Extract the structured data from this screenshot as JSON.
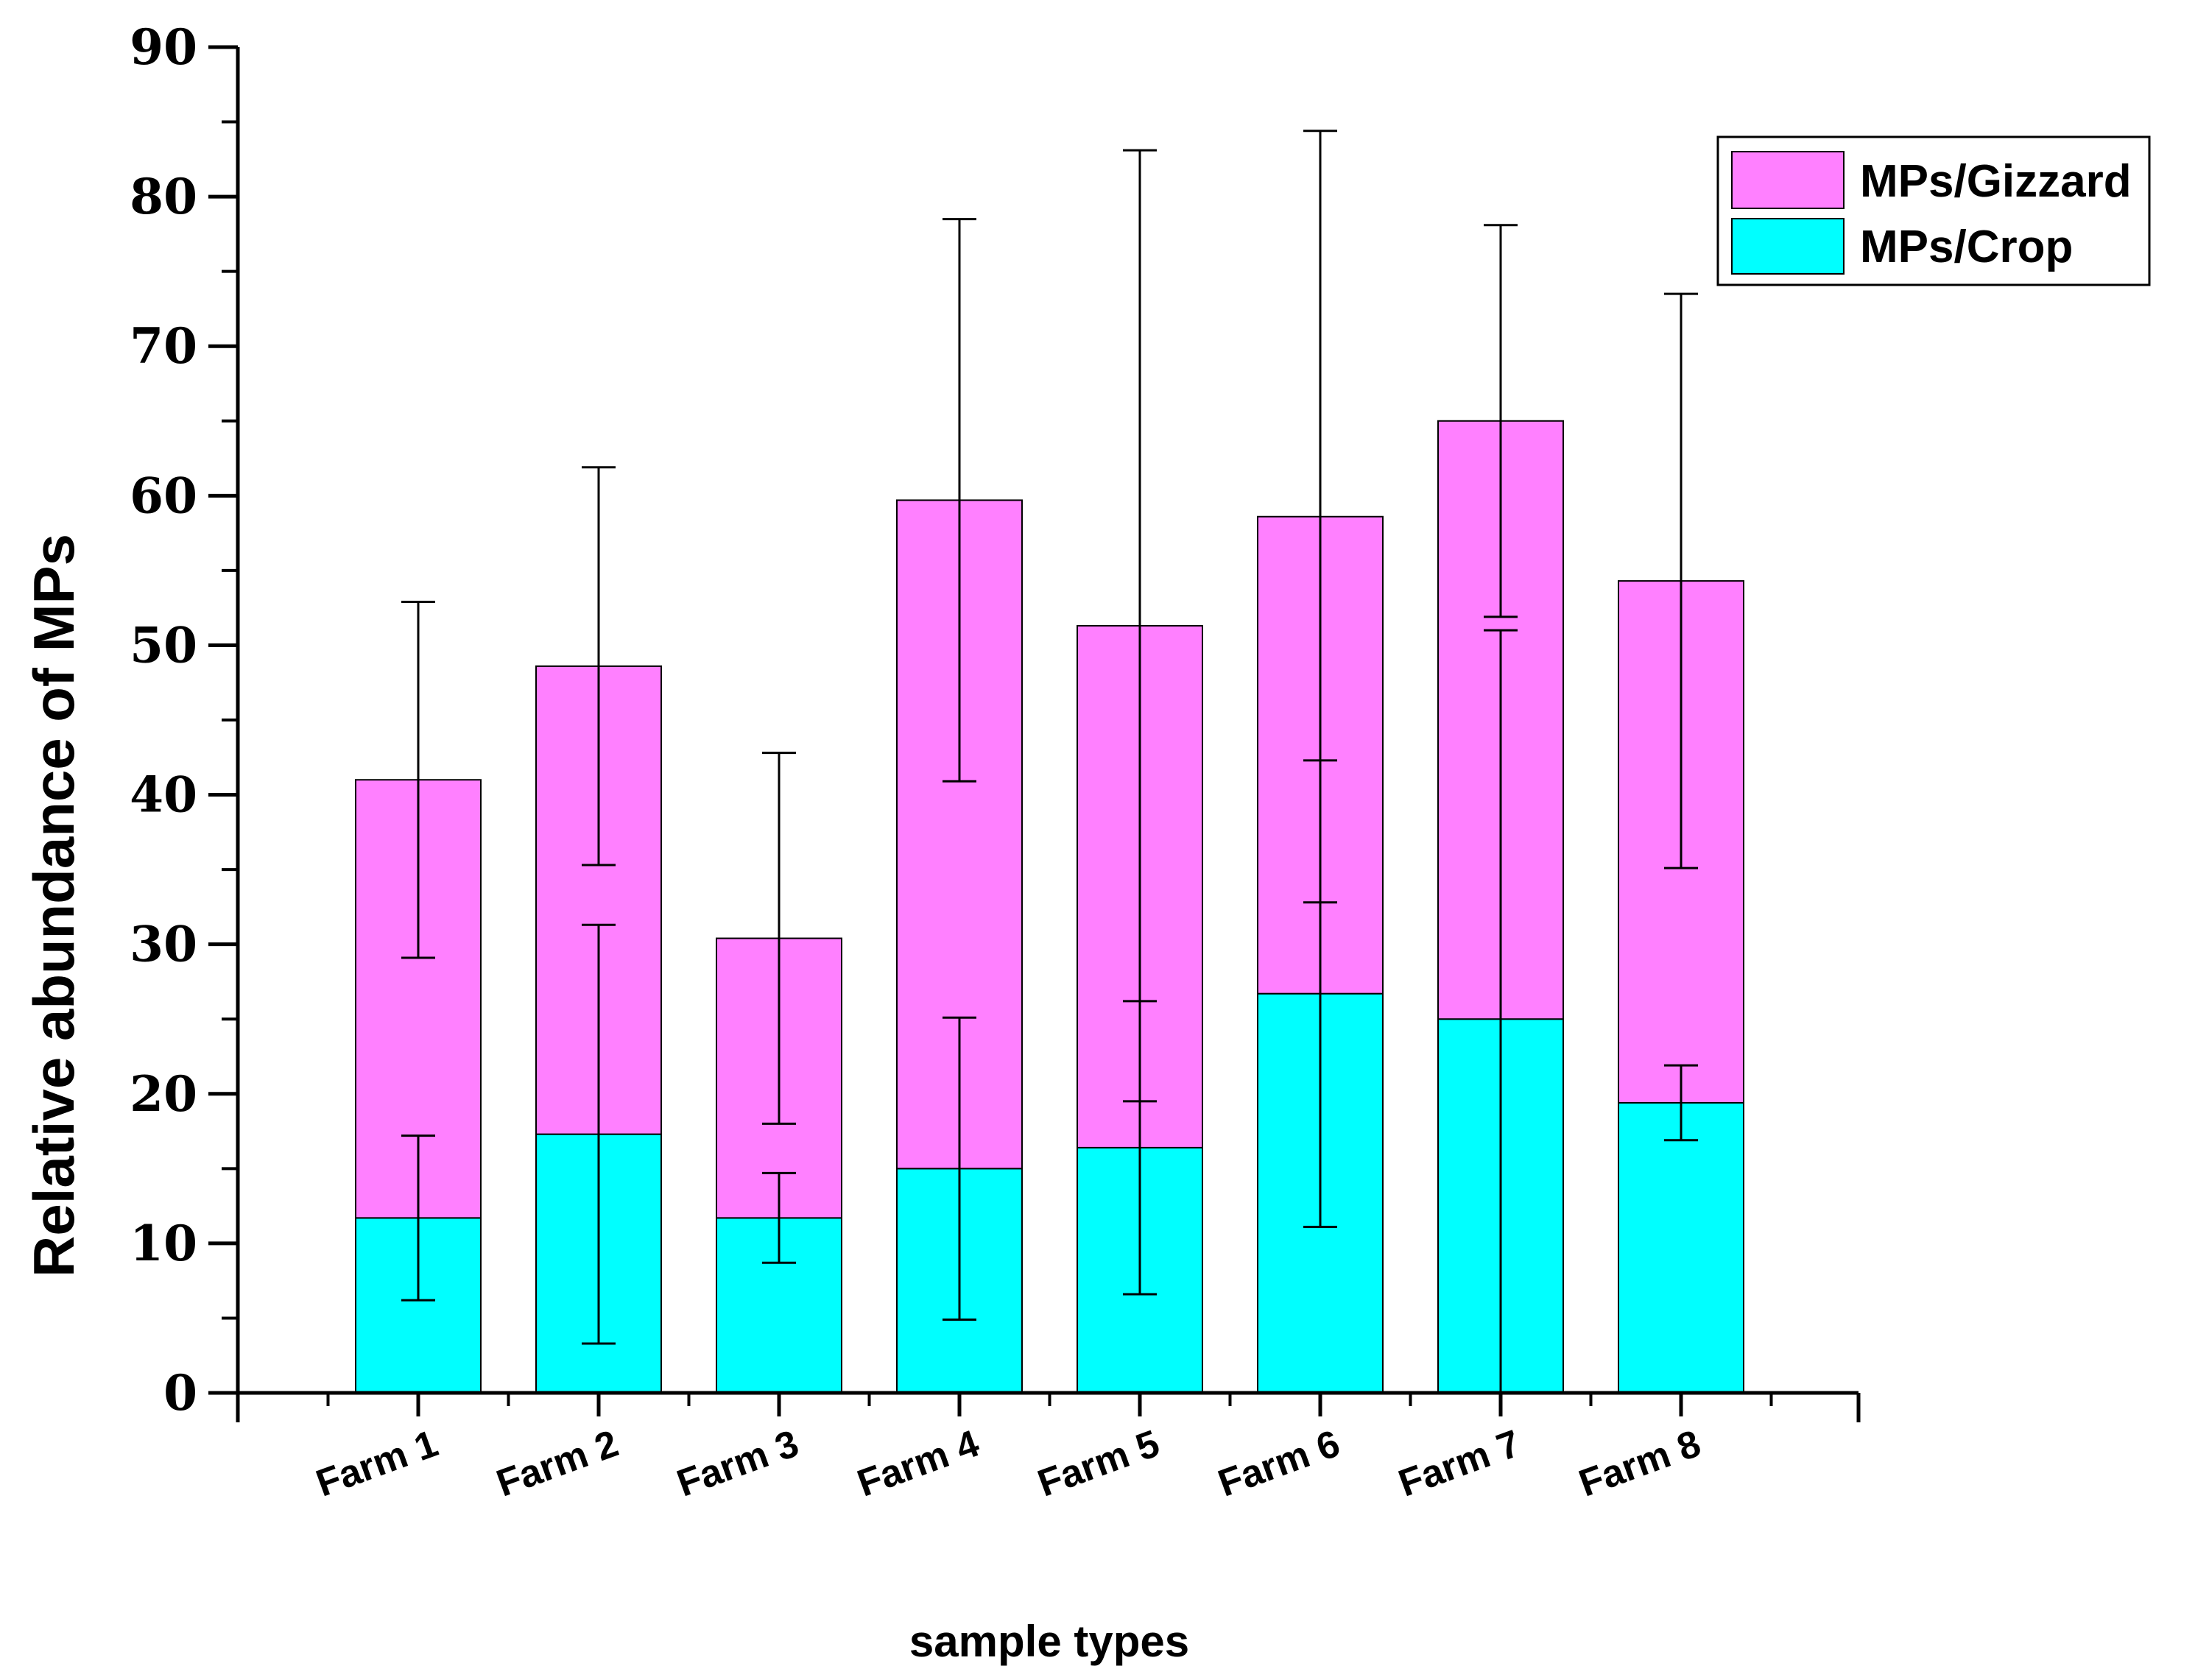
{
  "chart_data": {
    "type": "bar",
    "stacked": true,
    "title": "",
    "xlabel": "sample types",
    "ylabel": "Relative abundance of  MPs",
    "ylim": [
      0,
      90
    ],
    "yticks": [
      0,
      10,
      20,
      30,
      40,
      50,
      60,
      70,
      80,
      90
    ],
    "categories": [
      "Farm 1",
      "Farm 2",
      "Farm 3",
      "Farm 4",
      "Farm 5",
      "Farm 6",
      "Farm 7",
      "Farm 8"
    ],
    "series": [
      {
        "name": "MPs/Crop",
        "color": "#00ffff",
        "values": [
          11.7,
          17.3,
          11.7,
          15.0,
          16.4,
          26.7,
          25.0,
          19.4
        ],
        "error": [
          5.5,
          14.0,
          3.0,
          10.1,
          9.8,
          15.6,
          26.0,
          2.5
        ]
      },
      {
        "name": "MPs/Gizzard",
        "color": "#ff80ff",
        "values": [
          29.3,
          31.3,
          18.7,
          44.7,
          34.9,
          31.9,
          40.0,
          34.9
        ],
        "error": [
          11.9,
          13.3,
          12.4,
          18.8,
          31.8,
          25.8,
          13.1,
          19.2
        ]
      }
    ],
    "legend": {
      "position": "top-right",
      "entries": [
        "MPs/Gizzard",
        "MPs/Crop"
      ]
    }
  }
}
